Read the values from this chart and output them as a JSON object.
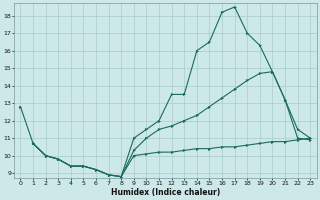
{
  "xlabel": "Humidex (Indice chaleur)",
  "bg_color": "#cce8e8",
  "grid_color": "#aacccc",
  "line_color": "#1a6b5a",
  "xlim": [
    -0.5,
    23.5
  ],
  "ylim": [
    8.7,
    18.7
  ],
  "yticks": [
    9,
    10,
    11,
    12,
    13,
    14,
    15,
    16,
    17,
    18
  ],
  "xticks": [
    0,
    1,
    2,
    3,
    4,
    5,
    6,
    7,
    8,
    9,
    10,
    11,
    12,
    13,
    14,
    15,
    16,
    17,
    18,
    19,
    20,
    21,
    22,
    23
  ],
  "line1_x": [
    0,
    1,
    2,
    3,
    4,
    5,
    6,
    7,
    8,
    9,
    10,
    11,
    12,
    13,
    14,
    15,
    16,
    17,
    18,
    19,
    20,
    21,
    22,
    23
  ],
  "line1_y": [
    12.8,
    10.7,
    10.0,
    9.8,
    9.4,
    9.4,
    9.2,
    8.9,
    8.8,
    11.0,
    11.5,
    12.0,
    13.5,
    13.5,
    16.0,
    16.5,
    18.2,
    18.5,
    17.0,
    16.3,
    14.8,
    13.2,
    11.0,
    10.9
  ],
  "line2_x": [
    1,
    2,
    3,
    4,
    5,
    6,
    7,
    8,
    9,
    10,
    11,
    12,
    13,
    14,
    15,
    16,
    17,
    18,
    19,
    20,
    21,
    22,
    23
  ],
  "line2_y": [
    10.7,
    10.0,
    9.8,
    9.4,
    9.4,
    9.2,
    8.9,
    8.8,
    10.3,
    11.0,
    11.5,
    11.7,
    12.0,
    12.3,
    12.8,
    13.3,
    13.8,
    14.3,
    14.7,
    14.8,
    13.2,
    11.5,
    11.0
  ],
  "line3_x": [
    1,
    2,
    3,
    4,
    5,
    6,
    7,
    8,
    9,
    10,
    11,
    12,
    13,
    14,
    15,
    16,
    17,
    18,
    19,
    20,
    21,
    22,
    23
  ],
  "line3_y": [
    10.7,
    10.0,
    9.8,
    9.4,
    9.4,
    9.2,
    8.9,
    8.8,
    10.0,
    10.1,
    10.2,
    10.2,
    10.3,
    10.4,
    10.4,
    10.5,
    10.5,
    10.6,
    10.7,
    10.8,
    10.8,
    10.9,
    11.0
  ]
}
